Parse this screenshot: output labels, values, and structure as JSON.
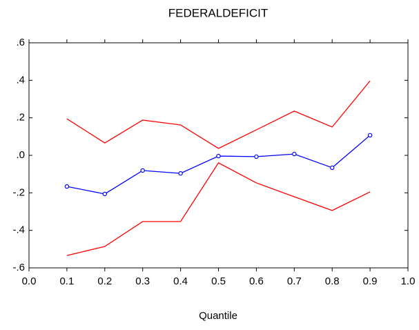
{
  "chart_data": {
    "type": "line",
    "title": "FEDERALDEFICIT",
    "x_label": "Quantile",
    "x": [
      0.1,
      0.2,
      0.3,
      0.4,
      0.5,
      0.6,
      0.7,
      0.8,
      0.9
    ],
    "series": [
      {
        "color": "#0000ff",
        "marker": "circle",
        "values": [
          -0.166,
          -0.206,
          -0.081,
          -0.096,
          -0.004,
          -0.007,
          0.007,
          -0.066,
          0.107
        ]
      },
      {
        "color": "#ff0000",
        "values": [
          0.195,
          0.066,
          0.188,
          0.162,
          0.037,
          0.136,
          0.236,
          0.151,
          0.397
        ]
      },
      {
        "color": "#ff0000",
        "values": [
          -0.534,
          -0.486,
          -0.353,
          -0.353,
          -0.04,
          -0.147,
          -0.221,
          -0.294,
          -0.195
        ]
      }
    ],
    "xlim": [
      0,
      1
    ],
    "xticks": [
      {
        "value": 0,
        "label": "0.0"
      },
      0.1,
      0.2,
      0.3,
      0.4,
      0.5,
      0.6,
      0.7,
      0.8,
      0.9,
      {
        "value": 1,
        "label": "1.0"
      }
    ],
    "ylim": [
      -0.6,
      0.6
    ],
    "yticks": [
      {
        "value": -0.6,
        "label": "-.6"
      },
      {
        "value": -0.4,
        "label": "-.4"
      },
      {
        "value": -0.2,
        "label": "-.2"
      },
      {
        "value": 0,
        "label": ".0"
      },
      {
        "value": 0.2,
        "label": ".2"
      },
      {
        "value": 0.4,
        "label": ".4"
      },
      {
        "value": 0.6,
        "label": ".6"
      }
    ],
    "grid": false
  }
}
